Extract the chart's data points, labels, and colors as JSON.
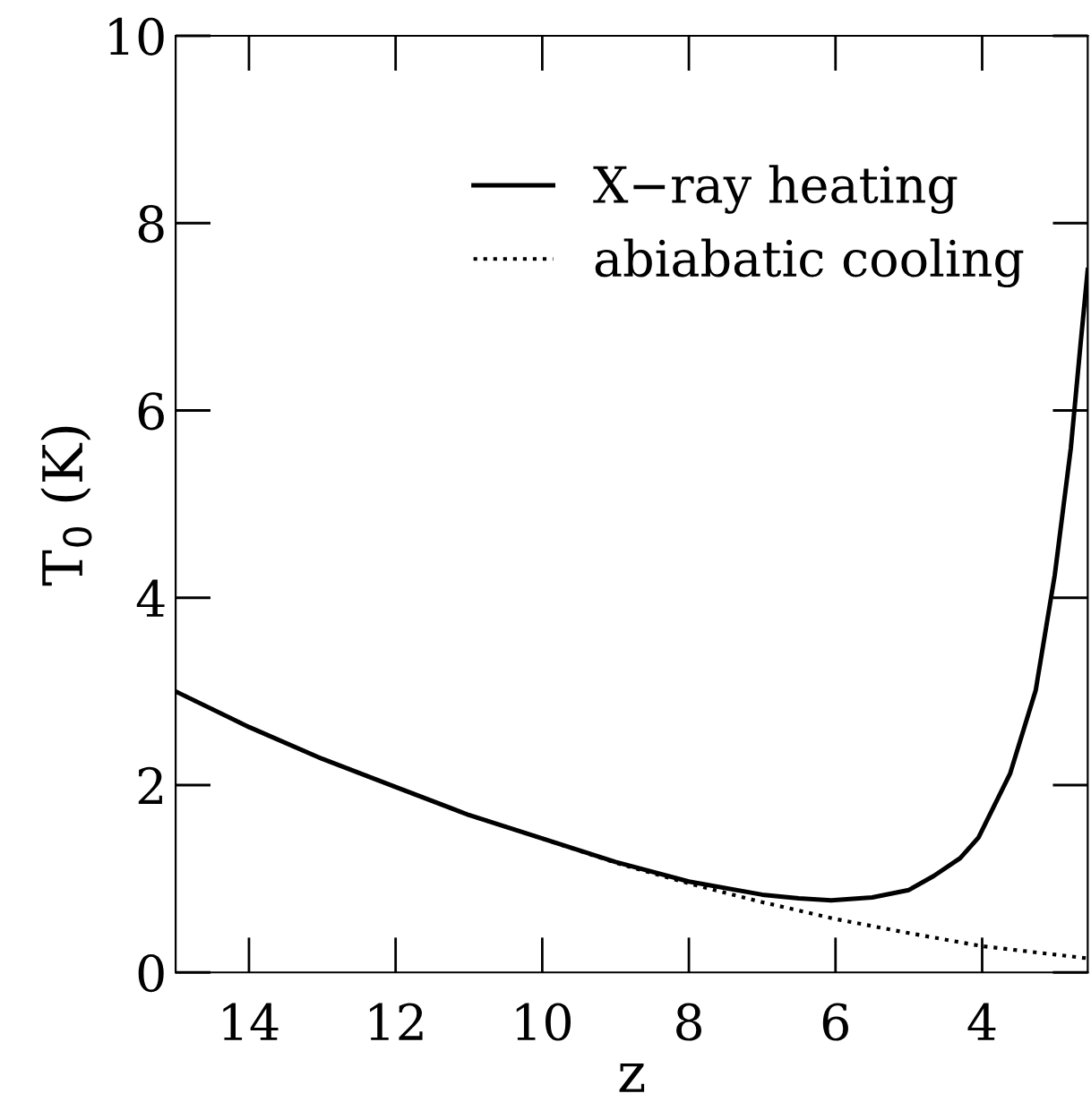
{
  "chart_data": {
    "type": "line",
    "xlabel": "z",
    "ylabel": "T$_{0}$ (K)",
    "xlim": [
      15,
      2.56
    ],
    "ylim": [
      0,
      10
    ],
    "xticks": [
      14,
      12,
      10,
      8,
      6,
      4
    ],
    "yticks": [
      0,
      2,
      4,
      6,
      8,
      10
    ],
    "grid": false,
    "legend": "top right",
    "series": [
      {
        "name": "X−ray heating",
        "color": "#000000",
        "line_style": "solid",
        "x": [
          15,
          14,
          13,
          12,
          11,
          10,
          9,
          8,
          7,
          6.5,
          6.06,
          5.5,
          5,
          4.66,
          4.3,
          4.05,
          3.62,
          3.27,
          3.01,
          2.79,
          2.66,
          2.56
        ],
        "values": [
          3.0,
          2.62,
          2.28,
          1.98,
          1.68,
          1.43,
          1.18,
          0.97,
          0.83,
          0.79,
          0.77,
          0.8,
          0.88,
          1.03,
          1.22,
          1.44,
          2.12,
          3.01,
          4.24,
          5.6,
          6.69,
          7.5
        ]
      },
      {
        "name": "abiabatic cooling",
        "color": "#000000",
        "line_style": "dotted",
        "x": [
          15,
          14,
          13,
          12,
          11,
          10,
          9,
          8,
          7,
          6,
          5,
          4,
          3,
          2.56
        ],
        "values": [
          3.0,
          2.62,
          2.28,
          1.98,
          1.68,
          1.43,
          1.17,
          0.95,
          0.75,
          0.57,
          0.42,
          0.28,
          0.19,
          0.15
        ]
      }
    ]
  }
}
